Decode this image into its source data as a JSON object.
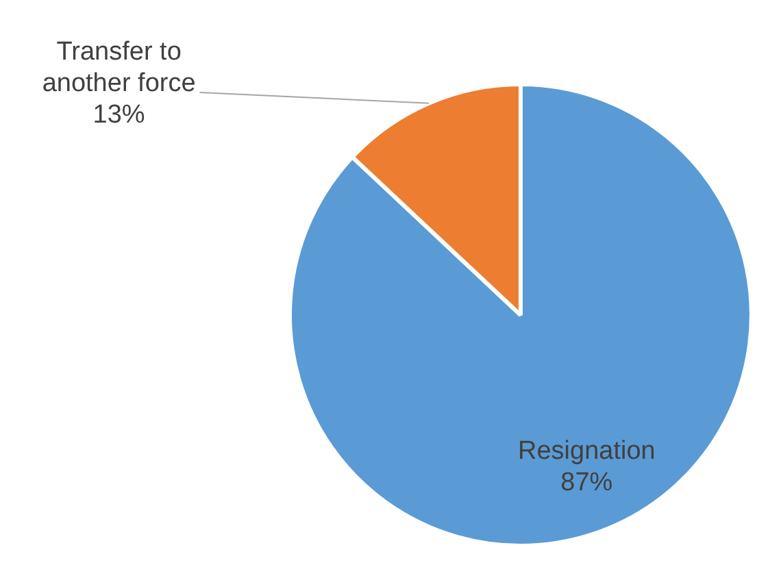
{
  "chart_data": {
    "type": "pie",
    "categories": [
      "Resignation",
      "Transfer to another force"
    ],
    "values": [
      87,
      13
    ],
    "value_labels": [
      "87%",
      "13%"
    ],
    "colors": [
      "#5b9bd5",
      "#ed7d31"
    ],
    "legend": false
  }
}
